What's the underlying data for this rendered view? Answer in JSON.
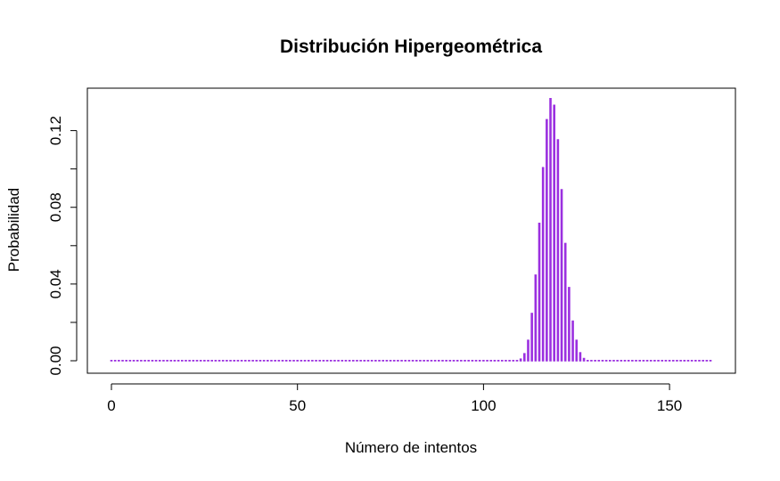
{
  "chart_data": {
    "type": "bar",
    "title": "Distribución Hipergeométrica",
    "xlabel": "Número de intentos",
    "ylabel": "Probabilidad",
    "xlim": [
      0,
      161
    ],
    "ylim": [
      0,
      0.137
    ],
    "x_ticks": [
      0,
      50,
      100,
      150
    ],
    "x_tick_labels": [
      "0",
      "50",
      "100",
      "150"
    ],
    "y_ticks": [
      0.0,
      0.04,
      0.08,
      0.12
    ],
    "y_tick_labels": [
      "0.00",
      "0.04",
      "0.08",
      "0.12"
    ],
    "y_minor_ticks": [
      0.02,
      0.06,
      0.1
    ],
    "grid": false,
    "legend": "none",
    "color": "#9B30E0",
    "series": [
      {
        "x_start": 0,
        "x_end": 161,
        "values_default": 0.0,
        "values_nonzero": [
          {
            "x": 109,
            "y": 0.0004
          },
          {
            "x": 110,
            "y": 0.0012
          },
          {
            "x": 111,
            "y": 0.004
          },
          {
            "x": 112,
            "y": 0.011
          },
          {
            "x": 113,
            "y": 0.025
          },
          {
            "x": 114,
            "y": 0.045
          },
          {
            "x": 115,
            "y": 0.072
          },
          {
            "x": 116,
            "y": 0.101
          },
          {
            "x": 117,
            "y": 0.126
          },
          {
            "x": 118,
            "y": 0.137
          },
          {
            "x": 119,
            "y": 0.1335
          },
          {
            "x": 120,
            "y": 0.1155
          },
          {
            "x": 121,
            "y": 0.0895
          },
          {
            "x": 122,
            "y": 0.0615
          },
          {
            "x": 123,
            "y": 0.0385
          },
          {
            "x": 124,
            "y": 0.021
          },
          {
            "x": 125,
            "y": 0.011
          },
          {
            "x": 126,
            "y": 0.0045
          },
          {
            "x": 127,
            "y": 0.0015
          },
          {
            "x": 128,
            "y": 0.0004
          }
        ]
      }
    ]
  }
}
